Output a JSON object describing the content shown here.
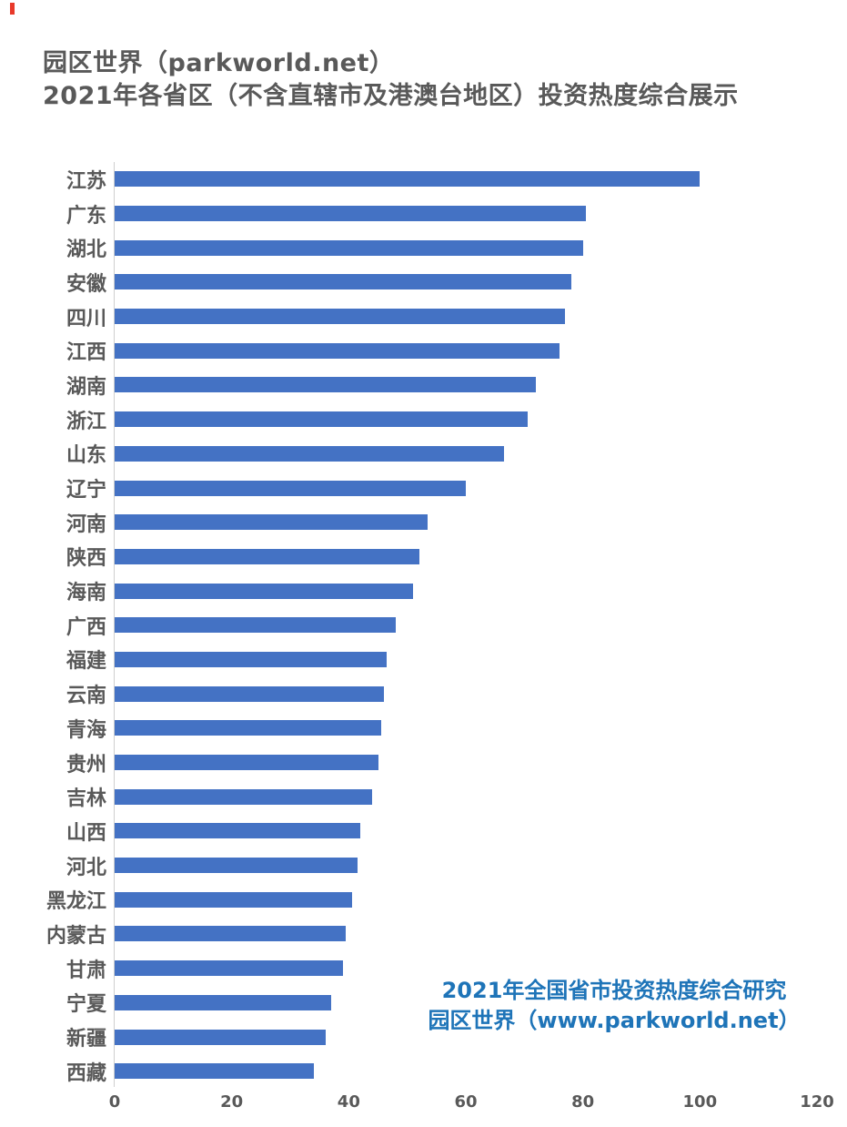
{
  "title": {
    "line1": "园区世界（parkworld.net）",
    "line2": "2021年各省区（不含直辖市及港澳台地区）投资热度综合展示"
  },
  "annotation": {
    "line1": "2021年全国省市投资热度综合研究",
    "line2": "园区世界（www.parkworld.net）"
  },
  "colors": {
    "bar": "#4472C4",
    "title_text": "#595959",
    "label_text": "#595959",
    "tick_text": "#595959",
    "annotation_text": "#1E74B8",
    "axis_line": "#CFCFCF",
    "corner_mark": "#E8392A"
  },
  "chart_data": {
    "type": "bar",
    "orientation": "horizontal",
    "title": "2021年各省区（不含直辖市及港澳台地区）投资热度综合展示",
    "xlabel": "",
    "ylabel": "",
    "xlim": [
      0,
      120
    ],
    "x_ticks": [
      0,
      20,
      40,
      60,
      80,
      100,
      120
    ],
    "grid": false,
    "legend": false,
    "categories": [
      "江苏",
      "广东",
      "湖北",
      "安徽",
      "四川",
      "江西",
      "湖南",
      "浙江",
      "山东",
      "辽宁",
      "河南",
      "陕西",
      "海南",
      "广西",
      "福建",
      "云南",
      "青海",
      "贵州",
      "吉林",
      "山西",
      "河北",
      "黑龙江",
      "内蒙古",
      "甘肃",
      "宁夏",
      "新疆",
      "西藏"
    ],
    "values": [
      100,
      80.5,
      80,
      78,
      77,
      76,
      72,
      70.5,
      66.5,
      60,
      53.5,
      52,
      51,
      48,
      46.5,
      46,
      45.5,
      45,
      44,
      42,
      41.5,
      40.5,
      39.5,
      39,
      37,
      36,
      34
    ]
  }
}
